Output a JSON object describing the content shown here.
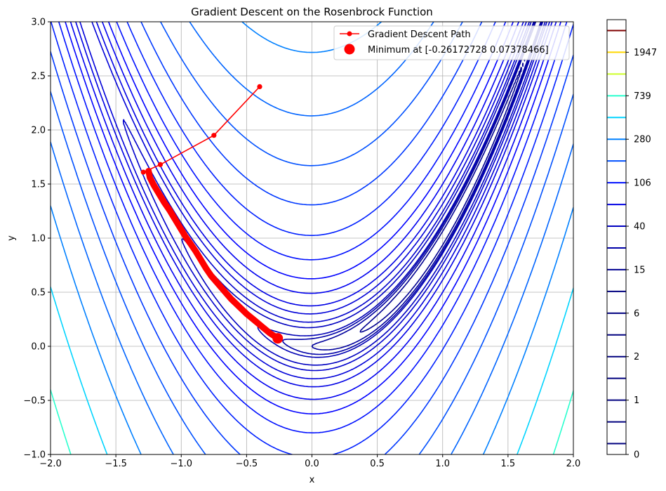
{
  "chart_data": {
    "type": "line",
    "title": "Gradient Descent on the Rosenbrock Function",
    "xlabel": "x",
    "ylabel": "y",
    "xlim": [
      -2.0,
      2.0
    ],
    "ylim": [
      -1.0,
      3.0
    ],
    "grid": true,
    "legend_position": "top-right",
    "x_ticks": [
      "−2.0",
      "−1.5",
      "−1.0",
      "−0.5",
      "0.0",
      "0.5",
      "1.0",
      "1.5",
      "2.0"
    ],
    "y_ticks": [
      "−1.0",
      "−0.5",
      "0.0",
      "0.5",
      "1.0",
      "1.5",
      "2.0",
      "2.5",
      "3.0"
    ],
    "x_tick_values": [
      -2.0,
      -1.5,
      -1.0,
      -0.5,
      0.0,
      0.5,
      1.0,
      1.5,
      2.0
    ],
    "y_tick_values": [
      -1.0,
      -0.5,
      0.0,
      0.5,
      1.0,
      1.5,
      2.0,
      2.5,
      3.0
    ],
    "contour": {
      "function": "Rosenbrock (1 - x)^2 + 100 (y - x^2)^2",
      "levels": [
        0,
        0.4,
        1,
        1.5,
        2,
        4,
        6,
        10,
        15,
        25,
        40,
        65,
        106,
        172,
        280,
        455,
        739,
        1200,
        1947,
        3200
      ],
      "level_colors": [
        "#000080",
        "#000090",
        "#00009c",
        "#0000a8",
        "#0000b4",
        "#0000c0",
        "#0000cc",
        "#0000d8",
        "#0000e4",
        "#0000f0",
        "#0000ff",
        "#0010ff",
        "#0020ff",
        "#0038ff",
        "#0050ff",
        "#0064ff",
        "#0080ff",
        "#00d4ff",
        "#29ffce",
        "#ceff29"
      ],
      "colorbar_ticks": [
        "0",
        "1",
        "2",
        "6",
        "15",
        "40",
        "106",
        "280",
        "739",
        "1947"
      ],
      "colorbar_tick_levels": [
        0,
        1,
        2,
        6,
        15,
        40,
        106,
        280,
        739,
        1947
      ],
      "colorbar_band_colors": [
        "#00007f",
        "#00007f",
        "#00007f",
        "#00007f",
        "#00007f",
        "#00007f",
        "#00007f",
        "#00007f",
        "#000090",
        "#0000a8",
        "#0000c0",
        "#0000e4",
        "#0010ff",
        "#0050ff",
        "#0080ff",
        "#00d4ff",
        "#29ffce",
        "#ceff29",
        "#ffd800",
        "#7f0000"
      ]
    },
    "series": [
      {
        "name": "Gradient Descent Path",
        "color": "#ff0000",
        "marker": "circle",
        "points": [
          [
            -0.4,
            2.4
          ],
          [
            -0.75,
            1.95
          ],
          [
            -1.16,
            1.68
          ],
          [
            -1.29,
            1.61
          ],
          [
            -1.25,
            1.62
          ],
          [
            -1.24,
            1.56
          ],
          [
            -1.21,
            1.49
          ],
          [
            -1.17,
            1.41
          ],
          [
            -1.13,
            1.33
          ],
          [
            -1.09,
            1.26
          ],
          [
            -1.05,
            1.18
          ],
          [
            -1.01,
            1.1
          ],
          [
            -0.97,
            1.02
          ],
          [
            -0.93,
            0.95
          ],
          [
            -0.89,
            0.88
          ],
          [
            -0.85,
            0.8
          ],
          [
            -0.81,
            0.72
          ],
          [
            -0.77,
            0.65
          ],
          [
            -0.72,
            0.58
          ],
          [
            -0.67,
            0.51
          ],
          [
            -0.62,
            0.44
          ],
          [
            -0.56,
            0.37
          ],
          [
            -0.5,
            0.3
          ],
          [
            -0.44,
            0.24
          ],
          [
            -0.38,
            0.18
          ],
          [
            -0.32,
            0.12
          ],
          [
            -0.26172728,
            0.07378466
          ]
        ]
      }
    ],
    "minimum": {
      "name": "Minimum at [-0.26172728  0.07378466]",
      "x": -0.26172728,
      "y": 0.07378466,
      "color": "#ff0000"
    }
  }
}
